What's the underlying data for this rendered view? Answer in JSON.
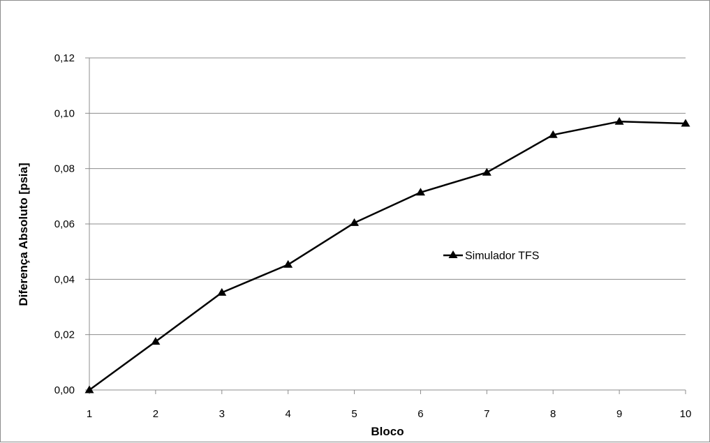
{
  "chart_data": {
    "type": "line",
    "title": "",
    "xlabel": "Bloco",
    "ylabel": "Diferença Absoluto [psia]",
    "x": [
      1,
      2,
      3,
      4,
      5,
      6,
      7,
      8,
      9,
      10
    ],
    "x_tick_labels": [
      "1",
      "2",
      "3",
      "4",
      "5",
      "6",
      "7",
      "8",
      "9",
      "10"
    ],
    "y_tick_values": [
      0,
      0.02,
      0.04,
      0.06,
      0.08,
      0.1,
      0.12
    ],
    "y_tick_labels": [
      "0,00",
      "0,02",
      "0,04",
      "0,06",
      "0,08",
      "0,10",
      "0,12"
    ],
    "ylim": [
      0,
      0.12
    ],
    "grid": "horizontal",
    "legend_position": "center-right",
    "series": [
      {
        "name": "Simulador TFS",
        "marker": "triangle",
        "color": "#000000",
        "values": [
          0.0,
          0.0175,
          0.0352,
          0.0453,
          0.0604,
          0.0714,
          0.0786,
          0.0922,
          0.097,
          0.0963
        ]
      }
    ]
  }
}
